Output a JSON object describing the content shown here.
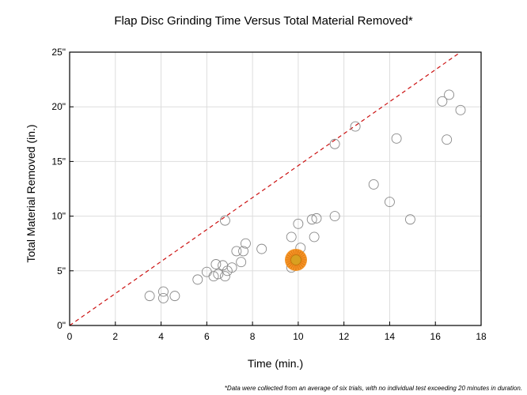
{
  "chart_data": {
    "type": "scatter",
    "title": "Flap Disc Grinding Time Versus Total Material Removed*",
    "xlabel": "Time (min.)",
    "ylabel": "Total Material Removed (in.)",
    "xlim": [
      0,
      18
    ],
    "ylim": [
      0,
      25
    ],
    "xticks": [
      0,
      2,
      4,
      6,
      8,
      10,
      12,
      14,
      16,
      18
    ],
    "xtick_labels": [
      "0",
      "2",
      "4",
      "6",
      "8",
      "10",
      "12",
      "14",
      "16",
      "18"
    ],
    "yticks": [
      0,
      5,
      10,
      15,
      20,
      25
    ],
    "ytick_labels": [
      "0\"",
      "5\"",
      "10\"",
      "15\"",
      "20\"",
      "25\""
    ],
    "grid": true,
    "footnote": "*Data were collected from an average of six trials, with no individual test exceeding 20 minutes in duration.",
    "reference_line": {
      "x": [
        0,
        17.1
      ],
      "y": [
        0,
        25
      ],
      "color": "#cc1111",
      "style": "dashed"
    },
    "points": [
      {
        "x": 3.5,
        "y": 2.7
      },
      {
        "x": 4.1,
        "y": 3.1
      },
      {
        "x": 4.1,
        "y": 2.5
      },
      {
        "x": 4.6,
        "y": 2.7
      },
      {
        "x": 5.6,
        "y": 4.2
      },
      {
        "x": 6.0,
        "y": 4.9
      },
      {
        "x": 6.3,
        "y": 4.5
      },
      {
        "x": 6.4,
        "y": 5.6
      },
      {
        "x": 6.5,
        "y": 4.7
      },
      {
        "x": 6.7,
        "y": 5.5
      },
      {
        "x": 6.8,
        "y": 4.5
      },
      {
        "x": 6.8,
        "y": 9.6
      },
      {
        "x": 6.9,
        "y": 5.0
      },
      {
        "x": 7.1,
        "y": 5.3
      },
      {
        "x": 7.3,
        "y": 6.8
      },
      {
        "x": 7.5,
        "y": 5.8
      },
      {
        "x": 7.6,
        "y": 6.8
      },
      {
        "x": 7.7,
        "y": 7.5
      },
      {
        "x": 8.4,
        "y": 7.0
      },
      {
        "x": 9.7,
        "y": 8.1
      },
      {
        "x": 9.7,
        "y": 5.3
      },
      {
        "x": 10.0,
        "y": 9.3
      },
      {
        "x": 10.1,
        "y": 7.1
      },
      {
        "x": 10.6,
        "y": 9.7
      },
      {
        "x": 10.7,
        "y": 8.1
      },
      {
        "x": 10.8,
        "y": 9.8
      },
      {
        "x": 11.6,
        "y": 16.6
      },
      {
        "x": 11.6,
        "y": 10.0
      },
      {
        "x": 12.5,
        "y": 18.2
      },
      {
        "x": 13.3,
        "y": 12.9
      },
      {
        "x": 14.0,
        "y": 11.3
      },
      {
        "x": 14.3,
        "y": 17.1
      },
      {
        "x": 14.9,
        "y": 9.7
      },
      {
        "x": 16.3,
        "y": 20.5
      },
      {
        "x": 16.5,
        "y": 17.0
      },
      {
        "x": 16.6,
        "y": 21.1
      },
      {
        "x": 17.1,
        "y": 19.7
      }
    ],
    "highlight": {
      "x": 9.9,
      "y": 6.0,
      "color": "#f28c14",
      "center_color": "#d9a020"
    },
    "colors": {
      "point_stroke": "#888888",
      "axis": "#000000",
      "grid": "#dddddd"
    }
  }
}
